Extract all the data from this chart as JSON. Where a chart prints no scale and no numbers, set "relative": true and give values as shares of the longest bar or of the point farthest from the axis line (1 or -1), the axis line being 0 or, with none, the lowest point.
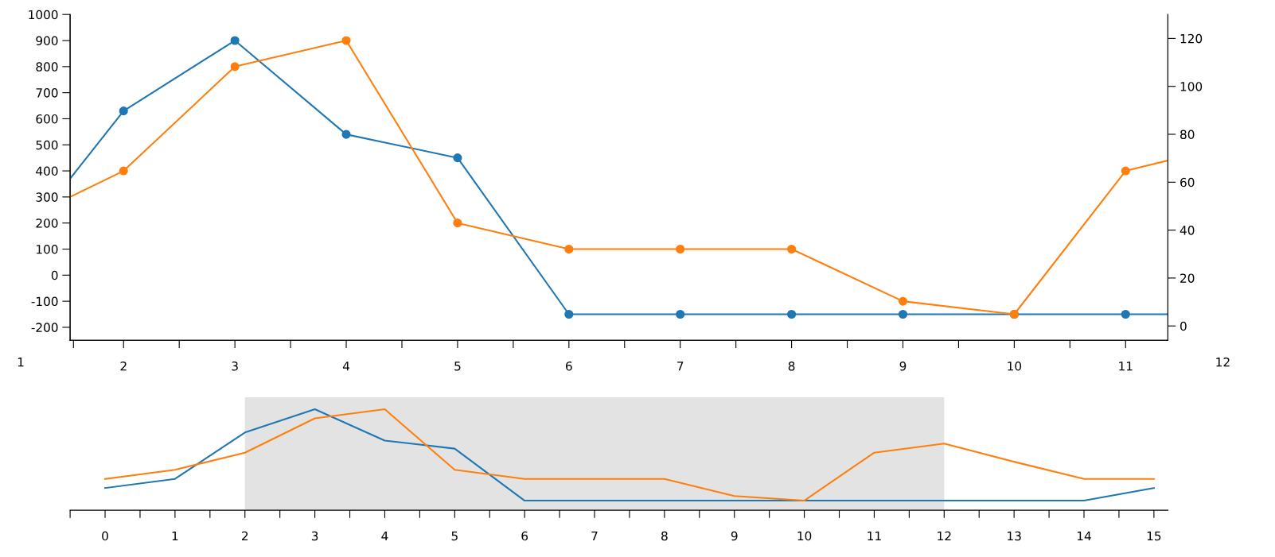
{
  "chart_data": [
    {
      "type": "line",
      "x": [
        1.52,
        2,
        3,
        4,
        5,
        6,
        7,
        8,
        9,
        10,
        11,
        11.38
      ],
      "marker": "circle",
      "grid": false,
      "legend": false,
      "series": [
        {
          "color": "#1f77b4",
          "values": [
            370,
            630,
            900,
            540,
            450,
            -150,
            -150,
            -150,
            -150,
            -150,
            -150,
            -150
          ]
        },
        {
          "color": "#ff7f0e",
          "values": [
            300,
            400,
            800,
            900,
            200,
            100,
            100,
            100,
            -100,
            -150,
            400,
            440
          ]
        }
      ],
      "xlim": [
        1.52,
        11.38
      ],
      "xticks": [
        {
          "value": 1.55,
          "label": null
        },
        {
          "value": 2,
          "label": "2"
        },
        {
          "value": 2.5,
          "label": null
        },
        {
          "value": 3,
          "label": "3"
        },
        {
          "value": 3.5,
          "label": null
        },
        {
          "value": 4,
          "label": "4"
        },
        {
          "value": 4.5,
          "label": null
        },
        {
          "value": 5,
          "label": "5"
        },
        {
          "value": 5.5,
          "label": null
        },
        {
          "value": 6,
          "label": "6"
        },
        {
          "value": 6.5,
          "label": null
        },
        {
          "value": 7,
          "label": "7"
        },
        {
          "value": 7.5,
          "label": null
        },
        {
          "value": 8,
          "label": "8"
        },
        {
          "value": 8.5,
          "label": null
        },
        {
          "value": 9,
          "label": "9"
        },
        {
          "value": 9.5,
          "label": null
        },
        {
          "value": 10,
          "label": "10"
        },
        {
          "value": 10.5,
          "label": null
        },
        {
          "value": 11,
          "label": "11"
        }
      ],
      "annotations": [
        "1",
        "12"
      ],
      "ylim": [
        -250,
        1000
      ],
      "yticks": [
        -200,
        -100,
        0,
        100,
        200,
        300,
        400,
        500,
        600,
        700,
        800,
        900,
        1000
      ],
      "y2lim": [
        -6,
        130
      ],
      "y2ticks": [
        0,
        20,
        40,
        60,
        80,
        100,
        120
      ]
    },
    {
      "type": "line",
      "x": [
        0,
        1,
        2,
        3,
        4,
        5,
        6,
        7,
        8,
        9,
        10,
        11,
        12,
        13,
        14,
        15
      ],
      "relative": true,
      "marker": "none",
      "grid": false,
      "legend": false,
      "series": [
        {
          "color": "#1f77b4",
          "values": [
            0.22,
            0.31,
            0.77,
            1,
            0.69,
            0.61,
            0.095,
            0.095,
            0.095,
            0.095,
            0.095,
            0.095,
            0.095,
            0.095,
            0.095,
            0.22
          ]
        },
        {
          "color": "#ff7f0e",
          "values": [
            0.31,
            0.4,
            0.57,
            0.91,
            1,
            0.4,
            0.31,
            0.31,
            0.31,
            0.14,
            0.095,
            0.57,
            0.66,
            0.48,
            0.31,
            0.31
          ]
        }
      ],
      "xlim": [
        -0.5,
        15.2
      ],
      "xticks": [
        {
          "value": -0.5,
          "label": null
        },
        0,
        {
          "value": 0.5,
          "label": null
        },
        1,
        {
          "value": 1.5,
          "label": null
        },
        2,
        {
          "value": 2.5,
          "label": null
        },
        3,
        {
          "value": 3.5,
          "label": null
        },
        4,
        {
          "value": 4.5,
          "label": null
        },
        5,
        {
          "value": 5.5,
          "label": null
        },
        6,
        {
          "value": 6.5,
          "label": null
        },
        7,
        {
          "value": 7.5,
          "label": null
        },
        8,
        {
          "value": 8.5,
          "label": null
        },
        9,
        {
          "value": 9.5,
          "label": null
        },
        10,
        {
          "value": 10.5,
          "label": null
        },
        11,
        {
          "value": 11.5,
          "label": null
        },
        12,
        {
          "value": 12.5,
          "label": null
        },
        13,
        {
          "value": 13.5,
          "label": null
        },
        14,
        {
          "value": 14.5,
          "label": null
        },
        15
      ],
      "bands": [
        {
          "axis": "x",
          "from": 2,
          "to": 12,
          "color": "#e3e3e3"
        }
      ]
    }
  ]
}
